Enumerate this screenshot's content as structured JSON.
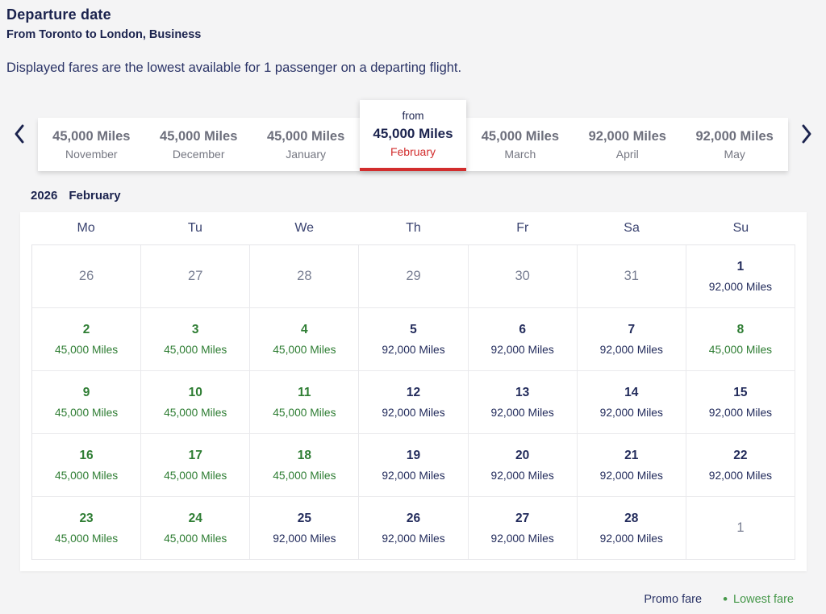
{
  "page": {
    "title": "Departure date",
    "subtitle": "From Toronto to London, Business",
    "description": "Displayed fares are the lowest available for 1 passenger on a departing flight."
  },
  "carousel": {
    "prev_icon": "chevron-left",
    "next_icon": "chevron-right",
    "from_label": "from",
    "tabs": [
      {
        "miles": "45,000 Miles",
        "month": "November",
        "selected": false
      },
      {
        "miles": "45,000 Miles",
        "month": "December",
        "selected": false
      },
      {
        "miles": "45,000 Miles",
        "month": "January",
        "selected": false
      },
      {
        "miles": "45,000 Miles",
        "month": "February",
        "selected": true
      },
      {
        "miles": "45,000 Miles",
        "month": "March",
        "selected": false
      },
      {
        "miles": "92,000 Miles",
        "month": "April",
        "selected": false
      },
      {
        "miles": "92,000 Miles",
        "month": "May",
        "selected": false
      }
    ]
  },
  "calendar": {
    "year": "2026",
    "month": "February",
    "day_headers": [
      "Mo",
      "Tu",
      "We",
      "Th",
      "Fr",
      "Sa",
      "Su"
    ],
    "weeks": [
      [
        {
          "day": "26",
          "fare": "",
          "type": "muted"
        },
        {
          "day": "27",
          "fare": "",
          "type": "muted"
        },
        {
          "day": "28",
          "fare": "",
          "type": "muted"
        },
        {
          "day": "29",
          "fare": "",
          "type": "muted"
        },
        {
          "day": "30",
          "fare": "",
          "type": "muted"
        },
        {
          "day": "31",
          "fare": "",
          "type": "muted"
        },
        {
          "day": "1",
          "fare": "92,000 Miles",
          "type": "regular"
        }
      ],
      [
        {
          "day": "2",
          "fare": "45,000 Miles",
          "type": "lowest"
        },
        {
          "day": "3",
          "fare": "45,000 Miles",
          "type": "lowest"
        },
        {
          "day": "4",
          "fare": "45,000 Miles",
          "type": "lowest"
        },
        {
          "day": "5",
          "fare": "92,000 Miles",
          "type": "regular"
        },
        {
          "day": "6",
          "fare": "92,000 Miles",
          "type": "regular"
        },
        {
          "day": "7",
          "fare": "92,000 Miles",
          "type": "regular"
        },
        {
          "day": "8",
          "fare": "45,000 Miles",
          "type": "lowest"
        }
      ],
      [
        {
          "day": "9",
          "fare": "45,000 Miles",
          "type": "lowest"
        },
        {
          "day": "10",
          "fare": "45,000 Miles",
          "type": "lowest"
        },
        {
          "day": "11",
          "fare": "45,000 Miles",
          "type": "lowest"
        },
        {
          "day": "12",
          "fare": "92,000 Miles",
          "type": "regular"
        },
        {
          "day": "13",
          "fare": "92,000 Miles",
          "type": "regular"
        },
        {
          "day": "14",
          "fare": "92,000 Miles",
          "type": "regular"
        },
        {
          "day": "15",
          "fare": "92,000 Miles",
          "type": "regular"
        }
      ],
      [
        {
          "day": "16",
          "fare": "45,000 Miles",
          "type": "lowest"
        },
        {
          "day": "17",
          "fare": "45,000 Miles",
          "type": "lowest"
        },
        {
          "day": "18",
          "fare": "45,000 Miles",
          "type": "lowest"
        },
        {
          "day": "19",
          "fare": "92,000 Miles",
          "type": "regular"
        },
        {
          "day": "20",
          "fare": "92,000 Miles",
          "type": "regular"
        },
        {
          "day": "21",
          "fare": "92,000 Miles",
          "type": "regular"
        },
        {
          "day": "22",
          "fare": "92,000 Miles",
          "type": "regular"
        }
      ],
      [
        {
          "day": "23",
          "fare": "45,000 Miles",
          "type": "lowest"
        },
        {
          "day": "24",
          "fare": "45,000 Miles",
          "type": "lowest"
        },
        {
          "day": "25",
          "fare": "92,000 Miles",
          "type": "regular"
        },
        {
          "day": "26",
          "fare": "92,000 Miles",
          "type": "regular"
        },
        {
          "day": "27",
          "fare": "92,000 Miles",
          "type": "regular"
        },
        {
          "day": "28",
          "fare": "92,000 Miles",
          "type": "regular"
        },
        {
          "day": "1",
          "fare": "",
          "type": "muted"
        }
      ]
    ]
  },
  "legend": {
    "promo": "Promo fare",
    "dot": "•",
    "lowest": "Lowest fare"
  },
  "colors": {
    "navy": "#1b234e",
    "green": "#2e7d33",
    "legend_green": "#46984a",
    "red": "#d22d2d",
    "muted_gray": "#787e92",
    "tab_gray": "#6d6f7c",
    "page_bg": "#f4f4f5",
    "panel_bg": "#ffffff",
    "border": "#e4e4e8"
  }
}
